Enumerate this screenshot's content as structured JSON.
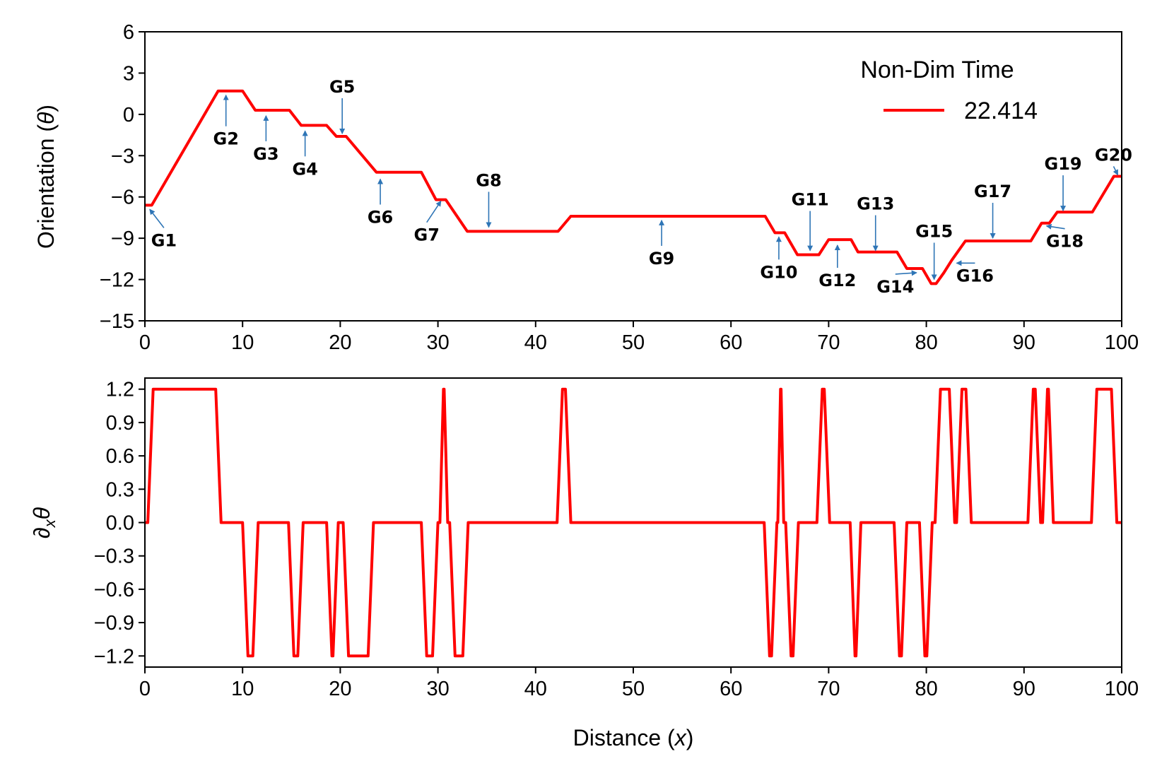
{
  "chart_data": [
    {
      "type": "line",
      "name": "orientation",
      "xlabel": "Distance (x)",
      "ylabel": "Orientation (θ)",
      "xlim": [
        0,
        100
      ],
      "ylim": [
        -15,
        6
      ],
      "xticks": [
        0,
        10,
        20,
        30,
        40,
        50,
        60,
        70,
        80,
        90,
        100
      ],
      "yticks": [
        -15,
        -12,
        -9,
        -6,
        -3,
        0,
        3,
        6
      ],
      "color": "#ff0000",
      "legend": {
        "title": "Non-Dim Time",
        "label": "22.414",
        "position": "top-right"
      },
      "series": [
        {
          "name": "22.414",
          "x": [
            0,
            0.7,
            7.5,
            8.2,
            10,
            11.3,
            14.8,
            16,
            18.6,
            19.6,
            20.6,
            23.7,
            28.3,
            29.8,
            30.8,
            33,
            42.3,
            43.6,
            63.5,
            64.5,
            65.5,
            66.8,
            69,
            70,
            72.3,
            73,
            77,
            78,
            79.6,
            80.5,
            81,
            81.8,
            82.6,
            84,
            90.7,
            91.8,
            92.6,
            93.4,
            97,
            99.2,
            100
          ],
          "y": [
            -6.6,
            -6.6,
            1.7,
            1.7,
            1.7,
            0.3,
            0.3,
            -0.8,
            -0.8,
            -1.6,
            -1.6,
            -4.2,
            -4.2,
            -6.2,
            -6.2,
            -8.5,
            -8.5,
            -7.4,
            -7.4,
            -8.6,
            -8.6,
            -10.2,
            -10.2,
            -9.1,
            -9.1,
            -10,
            -10,
            -11.2,
            -11.2,
            -12.3,
            -12.3,
            -11.5,
            -10.6,
            -9.2,
            -9.2,
            -7.9,
            -7.9,
            -7.1,
            -7.1,
            -4.5,
            -4.5
          ]
        }
      ],
      "annotations": [
        {
          "text": "G1",
          "x": 0.5,
          "y": -6.7
        },
        {
          "text": "G2",
          "x": 8.3,
          "y": 1.6
        },
        {
          "text": "G3",
          "x": 12.4,
          "y": 0.1
        },
        {
          "text": "G4",
          "x": 16.4,
          "y": -1.0
        },
        {
          "text": "G5",
          "x": 20.2,
          "y": -1.6
        },
        {
          "text": "G6",
          "x": 24.1,
          "y": -4.5
        },
        {
          "text": "G7",
          "x": 30.3,
          "y": -6.1
        },
        {
          "text": "G8",
          "x": 35.2,
          "y": -8.4
        },
        {
          "text": "G9",
          "x": 52.9,
          "y": -7.5
        },
        {
          "text": "G10",
          "x": 64.9,
          "y": -8.7
        },
        {
          "text": "G11",
          "x": 68.1,
          "y": -10.1
        },
        {
          "text": "G12",
          "x": 70.9,
          "y": -9.3
        },
        {
          "text": "G13",
          "x": 74.8,
          "y": -10.1
        },
        {
          "text": "G14",
          "x": 79.0,
          "y": -11.3
        },
        {
          "text": "G15",
          "x": 80.8,
          "y": -12.2
        },
        {
          "text": "G16",
          "x": 83.1,
          "y": -10.6
        },
        {
          "text": "G17",
          "x": 86.8,
          "y": -9.2
        },
        {
          "text": "G18",
          "x": 92.3,
          "y": -7.9
        },
        {
          "text": "G19",
          "x": 94.0,
          "y": -7.2
        },
        {
          "text": "G20",
          "x": 99.6,
          "y": -4.6
        }
      ]
    },
    {
      "type": "line",
      "name": "derivative",
      "xlabel": "Distance (x)",
      "ylabel": "∂xθ",
      "xlim": [
        0,
        100
      ],
      "ylim": [
        -1.3,
        1.3
      ],
      "xticks": [
        0,
        10,
        20,
        30,
        40,
        50,
        60,
        70,
        80,
        90,
        100
      ],
      "yticks": [
        -1.2,
        -0.9,
        -0.6,
        -0.3,
        0.0,
        0.3,
        0.6,
        0.9,
        1.2
      ],
      "color": "#ff0000",
      "series": [
        {
          "name": "22.414",
          "pulses": [
            {
              "from": 0.3,
              "to": 7.8,
              "value": 1.2
            },
            {
              "from": 10.0,
              "to": 11.6,
              "value": -1.2
            },
            {
              "from": 14.7,
              "to": 16.2,
              "value": -1.2
            },
            {
              "from": 18.6,
              "to": 19.8,
              "value": -1.2
            },
            {
              "from": 20.3,
              "to": 23.4,
              "value": -1.2
            },
            {
              "from": 28.3,
              "to": 30.0,
              "value": -1.2
            },
            {
              "from": 30.2,
              "to": 31.0,
              "value": 1.2
            },
            {
              "from": 31.2,
              "to": 33.1,
              "value": -1.2
            },
            {
              "from": 42.2,
              "to": 43.6,
              "value": 1.2
            },
            {
              "from": 63.4,
              "to": 64.7,
              "value": -1.2
            },
            {
              "from": 64.8,
              "to": 65.4,
              "value": 1.2
            },
            {
              "from": 65.6,
              "to": 66.9,
              "value": -1.2
            },
            {
              "from": 68.8,
              "to": 70.1,
              "value": 1.2
            },
            {
              "from": 72.2,
              "to": 73.3,
              "value": -1.2
            },
            {
              "from": 76.7,
              "to": 78.0,
              "value": -1.2
            },
            {
              "from": 79.3,
              "to": 80.6,
              "value": -1.2
            },
            {
              "from": 80.9,
              "to": 82.9,
              "value": 1.2
            },
            {
              "from": 83.1,
              "to": 84.6,
              "value": 1.2
            },
            {
              "from": 90.4,
              "to": 91.7,
              "value": 1.2
            },
            {
              "from": 91.9,
              "to": 93.0,
              "value": 1.2
            },
            {
              "from": 96.9,
              "to": 99.5,
              "value": 1.2
            }
          ]
        }
      ]
    }
  ]
}
